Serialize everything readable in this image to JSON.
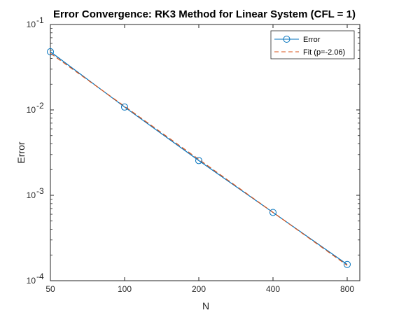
{
  "chart_data": {
    "type": "line",
    "title": "Error Convergence: RK3 Method for Linear System (CFL = 1)",
    "xlabel": "N",
    "ylabel": "Error",
    "xscale": "log",
    "yscale": "log",
    "xlim": [
      50,
      900
    ],
    "ylim": [
      0.0001,
      0.1
    ],
    "x_ticks": [
      50,
      100,
      200,
      400,
      800
    ],
    "x_tick_labels": [
      "50",
      "100",
      "200",
      "400",
      "800"
    ],
    "y_ticks": [
      0.0001,
      0.001,
      0.01,
      0.1
    ],
    "y_tick_labels": [
      {
        "base": "10",
        "exp": "-4"
      },
      {
        "base": "10",
        "exp": "-3"
      },
      {
        "base": "10",
        "exp": "-2"
      },
      {
        "base": "10",
        "exp": "-1"
      }
    ],
    "grid": false,
    "legend_position": "top-right",
    "series": [
      {
        "name": "Error",
        "style": "solid-circle-markers",
        "color": "#0072BD",
        "x": [
          50,
          100,
          200,
          400,
          800
        ],
        "y": [
          0.048,
          0.0108,
          0.00255,
          0.00063,
          0.000155
        ]
      },
      {
        "name": "Fit (p=-2.06)",
        "style": "dashed",
        "color": "#D95319",
        "x": [
          50,
          800
        ],
        "y": [
          0.046,
          0.000151
        ]
      }
    ]
  }
}
